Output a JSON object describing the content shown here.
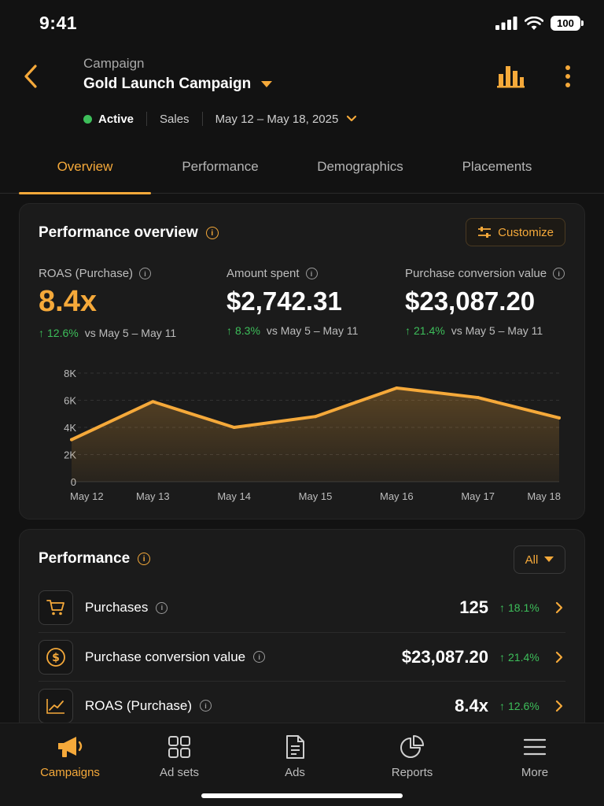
{
  "status_bar": {
    "time": "9:41",
    "battery": "100"
  },
  "header": {
    "kicker": "Campaign",
    "title": "Gold Launch Campaign",
    "status": "Active",
    "objective": "Sales",
    "date_range": "May 12 – May 18, 2025",
    "icons": {
      "back": "chevron-left-icon",
      "chart": "bar-chart-icon",
      "more": "more-vertical-icon"
    }
  },
  "tabs": [
    {
      "label": "Overview",
      "active": true
    },
    {
      "label": "Performance",
      "active": false
    },
    {
      "label": "Demographics",
      "active": false
    },
    {
      "label": "Placements",
      "active": false
    }
  ],
  "overview": {
    "title": "Performance overview",
    "customize_label": "Customize",
    "metrics": [
      {
        "label": "ROAS (Purchase)",
        "value": "8.4x",
        "change": "12.6%",
        "compare": "vs May 5 – May 11",
        "highlight": true
      },
      {
        "label": "Amount spent",
        "value": "$2,742.31",
        "change": "8.3%",
        "compare": "vs May 5 – May 11",
        "highlight": false
      },
      {
        "label": "Purchase conversion value",
        "value": "$23,087.20",
        "change": "21.4%",
        "compare": "vs May 5 – May 11",
        "highlight": false
      }
    ]
  },
  "chart_data": {
    "type": "area",
    "categories": [
      "May 12",
      "May 13",
      "May 14",
      "May 15",
      "May 16",
      "May 17",
      "May 18"
    ],
    "series": [
      {
        "values": [
          3100,
          5900,
          4000,
          4800,
          6900,
          6200,
          4700
        ]
      }
    ],
    "y_ticks": [
      "0",
      "2K",
      "4K",
      "6K",
      "8K"
    ],
    "ylim": [
      0,
      8000
    ],
    "grid": true,
    "color": "#F5A93A"
  },
  "performance": {
    "title": "Performance",
    "filter_label": "All",
    "rows": [
      {
        "label": "Purchases",
        "value": "125",
        "change": "18.1%",
        "icon": "cart-icon"
      },
      {
        "label": "Purchase conversion value",
        "value": "$23,087.20",
        "change": "21.4%",
        "icon": "dollar-icon"
      },
      {
        "label": "ROAS (Purchase)",
        "value": "8.4x",
        "change": "12.6%",
        "icon": "trend-up-icon"
      }
    ]
  },
  "nav": [
    {
      "label": "Campaigns",
      "icon": "megaphone-icon",
      "active": true
    },
    {
      "label": "Ad sets",
      "icon": "grid-icon",
      "active": false
    },
    {
      "label": "Ads",
      "icon": "document-icon",
      "active": false
    },
    {
      "label": "Reports",
      "icon": "pie-chart-icon",
      "active": false
    },
    {
      "label": "More",
      "icon": "menu-icon",
      "active": false
    }
  ],
  "colors": {
    "accent": "#F5A93A",
    "positive": "#3DBE5A",
    "background": "#121212",
    "card": "#1B1B1B"
  }
}
